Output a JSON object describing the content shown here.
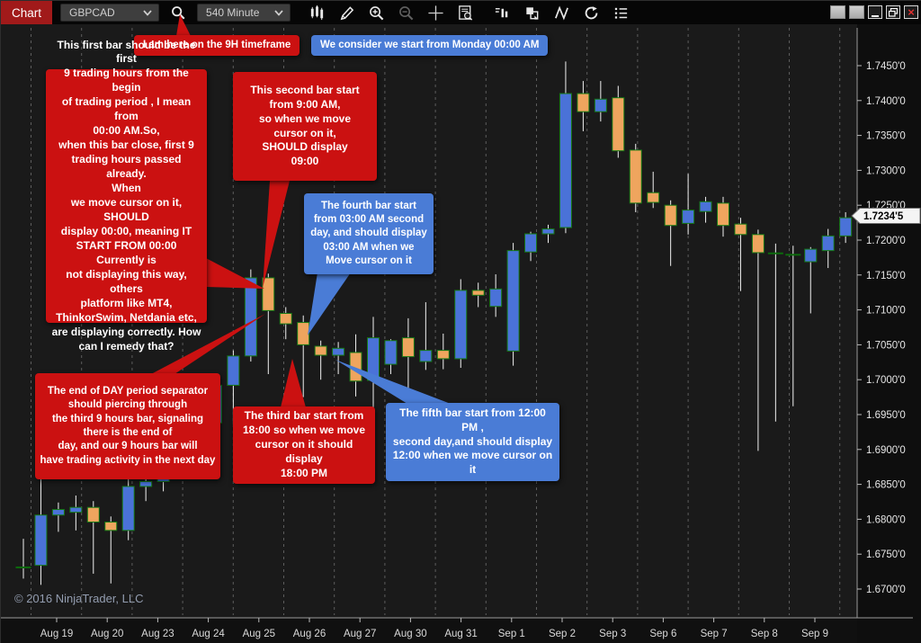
{
  "window": {
    "tab_label": "Chart",
    "control_names": [
      "window-option-1",
      "window-option-2",
      "minimize",
      "restore",
      "close"
    ]
  },
  "toolbar": {
    "symbol": "GBPCAD",
    "interval": "540 Minute",
    "icons": [
      "search-icon",
      "chart-style-icon",
      "drawing-tools-icon",
      "zoom-in-icon",
      "zoom-out-icon",
      "crosshair-icon",
      "data-box-icon",
      "indicators-icon",
      "windows-tile-icon",
      "zigzag-icon",
      "reload-icon",
      "properties-list-icon"
    ]
  },
  "colors": {
    "up": "#4a72d8",
    "down": "#efa55e",
    "outline": "#157a15",
    "doji": "#0c6b0c",
    "wick": "#f2f2f2",
    "red_annotation": "#cb1111",
    "blue_annotation": "#4a7cd6",
    "chart_tab": "#a11a1a"
  },
  "callouts": [
    {
      "color": "red",
      "text": "I am here on the 9H timeframe"
    },
    {
      "color": "blue",
      "text": "We consider we start from Monday 00:00 AM"
    },
    {
      "color": "red",
      "text": "This first bar should be the first\n9 trading hours from the begin\nof trading period , I mean from\n00:00 AM.So,\nwhen this bar close, first 9\ntrading hours passed already.\nWhen\nwe move cursor on it, SHOULD\ndisplay 00:00, meaning IT\nSTART FROM 00:00 Currently is\nnot displaying this way, others\nplatform like MT4,\nThinkorSwim, Netdania etc,\nare displaying correctly. How\ncan I remedy that?"
    },
    {
      "color": "red",
      "text": "This second bar start\nfrom  9:00 AM,\nso when we move\ncursor on it,\nSHOULD display\n09:00"
    },
    {
      "color": "blue",
      "text": "The fourth bar start\nfrom 03:00 AM second\nday, and should display\n03:00 AM when we\nMove cursor on it"
    },
    {
      "color": "red",
      "text": "The end of DAY period separator\nshould piercing through\nthe third 9 hours bar, signaling\nthere is the end of\nday, and our 9 hours bar will\nhave trading activity in the next day"
    },
    {
      "color": "red",
      "text": "The third bar start from\n18:00 so when we move\ncursor on it should display\n18:00 PM"
    },
    {
      "color": "blue",
      "text": "The fifth bar start from 12:00 PM ,\nsecond day,and should display\n12:00 when we move cursor on it"
    }
  ],
  "chart_data": {
    "type": "candlestick",
    "symbol": "GBPCAD",
    "interval": "540 Minute",
    "ylim": [
      1.67,
      1.745
    ],
    "grid": "vertical-session-separators-only",
    "x_labels": [
      "Aug 19",
      "Aug 20",
      "Aug 23",
      "Aug 24",
      "Aug 25",
      "Aug 26",
      "Aug 27",
      "Aug 30",
      "Aug 31",
      "Sep 1",
      "Sep 2",
      "Sep 3",
      "Sep 6",
      "Sep 7",
      "Sep 8",
      "Sep 9"
    ],
    "y_tick_labels": [
      "1.7450'0",
      "1.7400'0",
      "1.7350'0",
      "1.7300'0",
      "1.7250'0",
      "1.7200'0",
      "1.7150'0",
      "1.7100'0",
      "1.7050'0",
      "1.7000'0",
      "1.6950'0",
      "1.6900'0",
      "1.6850'0",
      "1.6800'0",
      "1.6750'0",
      "1.6700'0"
    ],
    "y_tick_values": [
      1.745,
      1.74,
      1.735,
      1.73,
      1.725,
      1.72,
      1.715,
      1.71,
      1.705,
      1.7,
      1.695,
      1.69,
      1.685,
      1.68,
      1.675,
      1.67
    ],
    "last_price": 1.72345,
    "last_price_label": "1.7234'5",
    "candles": [
      [
        1.6731,
        1.6772,
        1.6715,
        1.6731
      ],
      [
        1.6734,
        1.686,
        1.6706,
        1.6806
      ],
      [
        1.6806,
        1.6824,
        1.6782,
        1.6814
      ],
      [
        1.681,
        1.6834,
        1.6784,
        1.6817
      ],
      [
        1.6817,
        1.6826,
        1.6722,
        1.6796
      ],
      [
        1.6796,
        1.6804,
        1.6708,
        1.6784
      ],
      [
        1.6784,
        1.688,
        1.677,
        1.6847
      ],
      [
        1.6847,
        1.6893,
        1.6826,
        1.6854
      ],
      [
        1.6854,
        1.6922,
        1.684,
        1.6908
      ],
      [
        1.6908,
        1.6978,
        1.6894,
        1.6962
      ],
      [
        1.6962,
        1.6988,
        1.692,
        1.6938
      ],
      [
        1.6938,
        1.7008,
        1.6926,
        1.6992
      ],
      [
        1.6992,
        1.7042,
        1.6936,
        1.7034
      ],
      [
        1.7034,
        1.7158,
        1.7026,
        1.7146
      ],
      [
        1.7146,
        1.7152,
        1.7008,
        1.7099
      ],
      [
        1.7095,
        1.7104,
        1.7058,
        1.708
      ],
      [
        1.7082,
        1.7092,
        1.6975,
        1.705
      ],
      [
        1.7048,
        1.7056,
        1.7,
        1.7035
      ],
      [
        1.7035,
        1.7054,
        1.7008,
        1.7045
      ],
      [
        1.7039,
        1.7065,
        1.6976,
        1.6998
      ],
      [
        1.6999,
        1.709,
        1.695,
        1.706
      ],
      [
        1.7022,
        1.7058,
        1.7008,
        1.7056
      ],
      [
        1.706,
        1.7088,
        1.6988,
        1.7033
      ],
      [
        1.7026,
        1.7111,
        1.7014,
        1.7042
      ],
      [
        1.7042,
        1.7066,
        1.7015,
        1.703
      ],
      [
        1.703,
        1.7144,
        1.7017,
        1.7128
      ],
      [
        1.7128,
        1.7139,
        1.7104,
        1.7121
      ],
      [
        1.7105,
        1.7151,
        1.709,
        1.713
      ],
      [
        1.7041,
        1.7196,
        1.702,
        1.7185
      ],
      [
        1.7183,
        1.7212,
        1.717,
        1.7209
      ],
      [
        1.7209,
        1.7222,
        1.7196,
        1.7216
      ],
      [
        1.7218,
        1.7456,
        1.721,
        1.741
      ],
      [
        1.741,
        1.7428,
        1.7356,
        1.7384
      ],
      [
        1.7384,
        1.7428,
        1.737,
        1.7402
      ],
      [
        1.7404,
        1.7421,
        1.7318,
        1.7328
      ],
      [
        1.7329,
        1.7338,
        1.724,
        1.7253
      ],
      [
        1.7268,
        1.7298,
        1.7246,
        1.7254
      ],
      [
        1.725,
        1.7257,
        1.7163,
        1.7221
      ],
      [
        1.7224,
        1.7295,
        1.7208,
        1.7243
      ],
      [
        1.7241,
        1.7262,
        1.7225,
        1.7255
      ],
      [
        1.7253,
        1.7262,
        1.7205,
        1.7221
      ],
      [
        1.7223,
        1.7232,
        1.7127,
        1.7208
      ],
      [
        1.7208,
        1.7215,
        1.6898,
        1.7182
      ],
      [
        1.7181,
        1.7195,
        1.694,
        1.7181
      ],
      [
        1.7179,
        1.7192,
        1.6962,
        1.7179
      ],
      [
        1.7169,
        1.719,
        1.7095,
        1.7187
      ],
      [
        1.7185,
        1.7216,
        1.716,
        1.7206
      ],
      [
        1.7206,
        1.724,
        1.7196,
        1.7232
      ]
    ]
  },
  "footer": {
    "copyright": "© 2016 NinjaTrader, LLC"
  }
}
